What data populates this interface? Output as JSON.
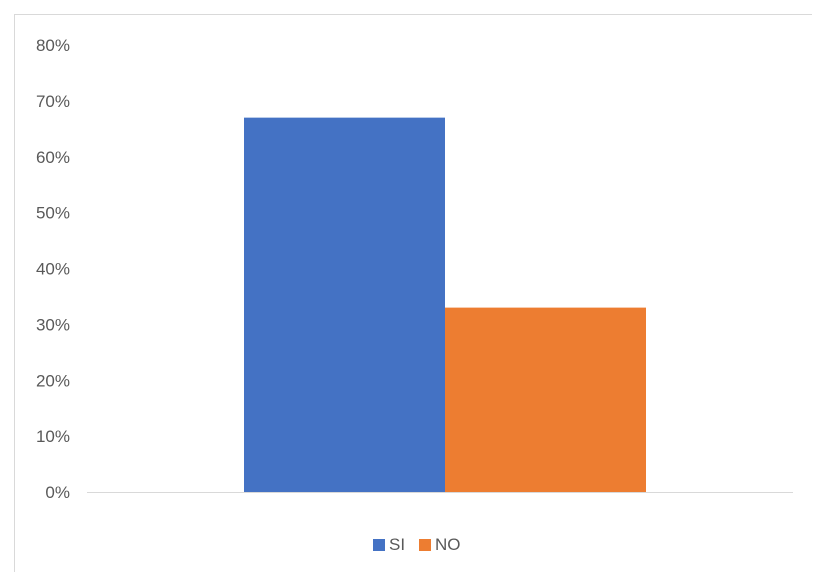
{
  "chart_data": {
    "type": "bar",
    "title": "",
    "xlabel": "",
    "ylabel": "",
    "ylim": [
      0,
      0.8
    ],
    "y_tick_step": 0.1,
    "y_tick_format": "percent",
    "grid": false,
    "legend_position": "bottom",
    "categories": [
      ""
    ],
    "series": [
      {
        "name": "SI",
        "values": [
          0.67
        ],
        "color": "#4472C4"
      },
      {
        "name": "NO",
        "values": [
          0.33
        ],
        "color": "#ED7D31"
      }
    ]
  }
}
